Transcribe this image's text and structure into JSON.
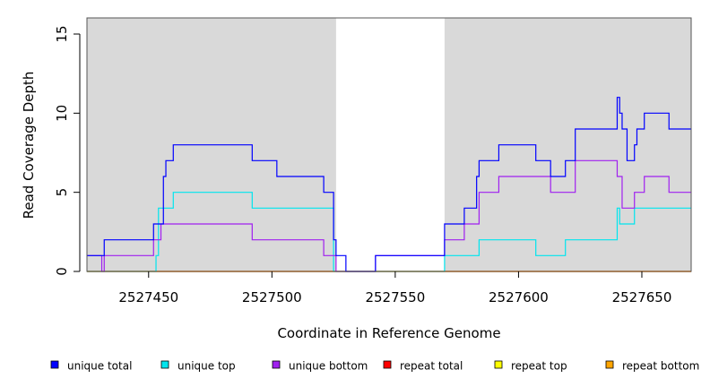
{
  "chart_data": {
    "type": "line",
    "xlabel": "Coordinate in Reference Genome",
    "ylabel": "Read Coverage Depth",
    "xlim": [
      2527425,
      2527670
    ],
    "ylim": [
      0,
      16
    ],
    "x_ticks": [
      2527450,
      2527500,
      2527550,
      2527600,
      2527650
    ],
    "y_ticks": [
      0,
      5,
      10,
      15
    ],
    "grid": false,
    "legend_position": "bottom",
    "shaded_regions": [
      {
        "x0": 2527425,
        "x1": 2527526,
        "color": "#d9d9d9"
      },
      {
        "x0": 2527570,
        "x1": 2527670,
        "color": "#d9d9d9"
      }
    ],
    "series": [
      {
        "name": "unique total",
        "color": "#0000ff",
        "points": [
          [
            2527425,
            1
          ],
          [
            2527432,
            1
          ],
          [
            2527432,
            2
          ],
          [
            2527452,
            2
          ],
          [
            2527452,
            3
          ],
          [
            2527456,
            3
          ],
          [
            2527456,
            6
          ],
          [
            2527457,
            6
          ],
          [
            2527457,
            7
          ],
          [
            2527460,
            7
          ],
          [
            2527460,
            8
          ],
          [
            2527492,
            8
          ],
          [
            2527492,
            7
          ],
          [
            2527502,
            7
          ],
          [
            2527502,
            6
          ],
          [
            2527521,
            6
          ],
          [
            2527521,
            5
          ],
          [
            2527525,
            5
          ],
          [
            2527525,
            2
          ],
          [
            2527526,
            2
          ],
          [
            2527526,
            1
          ],
          [
            2527530,
            1
          ],
          [
            2527530,
            0
          ],
          [
            2527542,
            0
          ],
          [
            2527542,
            1
          ],
          [
            2527570,
            1
          ],
          [
            2527570,
            3
          ],
          [
            2527578,
            3
          ],
          [
            2527578,
            4
          ],
          [
            2527583,
            4
          ],
          [
            2527583,
            6
          ],
          [
            2527584,
            6
          ],
          [
            2527584,
            7
          ],
          [
            2527592,
            7
          ],
          [
            2527592,
            8
          ],
          [
            2527607,
            8
          ],
          [
            2527607,
            7
          ],
          [
            2527613,
            7
          ],
          [
            2527613,
            6
          ],
          [
            2527619,
            6
          ],
          [
            2527619,
            7
          ],
          [
            2527623,
            7
          ],
          [
            2527623,
            9
          ],
          [
            2527640,
            9
          ],
          [
            2527640,
            11
          ],
          [
            2527641,
            11
          ],
          [
            2527641,
            10
          ],
          [
            2527642,
            10
          ],
          [
            2527642,
            9
          ],
          [
            2527644,
            9
          ],
          [
            2527644,
            7
          ],
          [
            2527647,
            7
          ],
          [
            2527647,
            8
          ],
          [
            2527648,
            8
          ],
          [
            2527648,
            9
          ],
          [
            2527651,
            9
          ],
          [
            2527651,
            10
          ],
          [
            2527661,
            10
          ],
          [
            2527661,
            9
          ],
          [
            2527670,
            9
          ]
        ]
      },
      {
        "name": "unique top",
        "color": "#00e5ee",
        "points": [
          [
            2527425,
            0
          ],
          [
            2527453,
            0
          ],
          [
            2527453,
            1
          ],
          [
            2527454,
            1
          ],
          [
            2527454,
            4
          ],
          [
            2527460,
            4
          ],
          [
            2527460,
            5
          ],
          [
            2527492,
            5
          ],
          [
            2527492,
            4
          ],
          [
            2527525,
            4
          ],
          [
            2527525,
            0
          ],
          [
            2527570,
            0
          ],
          [
            2527570,
            1
          ],
          [
            2527584,
            1
          ],
          [
            2527584,
            2
          ],
          [
            2527607,
            2
          ],
          [
            2527607,
            1
          ],
          [
            2527619,
            1
          ],
          [
            2527619,
            2
          ],
          [
            2527640,
            2
          ],
          [
            2527640,
            4
          ],
          [
            2527641,
            4
          ],
          [
            2527641,
            3
          ],
          [
            2527647,
            3
          ],
          [
            2527647,
            4
          ],
          [
            2527670,
            4
          ]
        ]
      },
      {
        "name": "unique bottom",
        "color": "#a020f0",
        "points": [
          [
            2527425,
            1
          ],
          [
            2527431,
            1
          ],
          [
            2527431,
            0
          ],
          [
            2527432,
            0
          ],
          [
            2527432,
            1
          ],
          [
            2527452,
            1
          ],
          [
            2527452,
            2
          ],
          [
            2527455,
            2
          ],
          [
            2527455,
            3
          ],
          [
            2527492,
            3
          ],
          [
            2527492,
            2
          ],
          [
            2527521,
            2
          ],
          [
            2527521,
            1
          ],
          [
            2527526,
            1
          ],
          [
            2527526,
            0
          ],
          [
            2527542,
            0
          ],
          [
            2527542,
            1
          ],
          [
            2527570,
            1
          ],
          [
            2527570,
            2
          ],
          [
            2527578,
            2
          ],
          [
            2527578,
            3
          ],
          [
            2527584,
            3
          ],
          [
            2527584,
            5
          ],
          [
            2527592,
            5
          ],
          [
            2527592,
            6
          ],
          [
            2527613,
            6
          ],
          [
            2527613,
            5
          ],
          [
            2527623,
            5
          ],
          [
            2527623,
            7
          ],
          [
            2527640,
            7
          ],
          [
            2527640,
            6
          ],
          [
            2527642,
            6
          ],
          [
            2527642,
            4
          ],
          [
            2527647,
            4
          ],
          [
            2527647,
            5
          ],
          [
            2527651,
            5
          ],
          [
            2527651,
            6
          ],
          [
            2527661,
            6
          ],
          [
            2527661,
            5
          ],
          [
            2527670,
            5
          ]
        ]
      },
      {
        "name": "repeat total",
        "color": "#ff0000",
        "points": [
          [
            2527425,
            0
          ],
          [
            2527670,
            0
          ]
        ]
      },
      {
        "name": "repeat top",
        "color": "#ffff00",
        "points": [
          [
            2527425,
            0
          ],
          [
            2527670,
            0
          ]
        ]
      },
      {
        "name": "repeat bottom",
        "color": "#ffa500",
        "points": [
          [
            2527425,
            0
          ],
          [
            2527670,
            0
          ]
        ]
      }
    ]
  }
}
